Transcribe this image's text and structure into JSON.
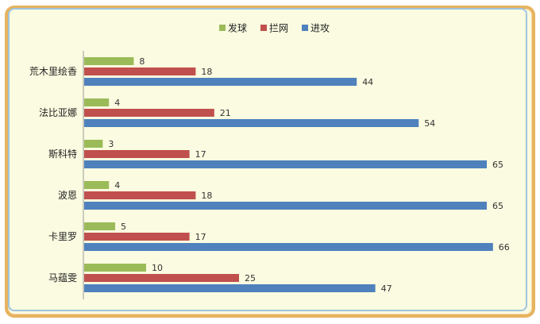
{
  "chart_data": {
    "type": "bar",
    "orientation": "horizontal",
    "legend_position": "top",
    "grid": false,
    "categories": [
      "荒木里绘香",
      "法比亚娜",
      "斯科特",
      "波恩",
      "卡里罗",
      "马蕴雯"
    ],
    "series": [
      {
        "name": "发球",
        "color": "#9bbb59",
        "values": [
          8,
          4,
          3,
          4,
          5,
          10
        ]
      },
      {
        "name": "拦网",
        "color": "#c0504d",
        "values": [
          18,
          21,
          17,
          18,
          17,
          25
        ]
      },
      {
        "name": "进攻",
        "color": "#4f81bd",
        "values": [
          44,
          54,
          65,
          65,
          66,
          47
        ]
      }
    ],
    "xlim": [
      0,
      70
    ]
  }
}
